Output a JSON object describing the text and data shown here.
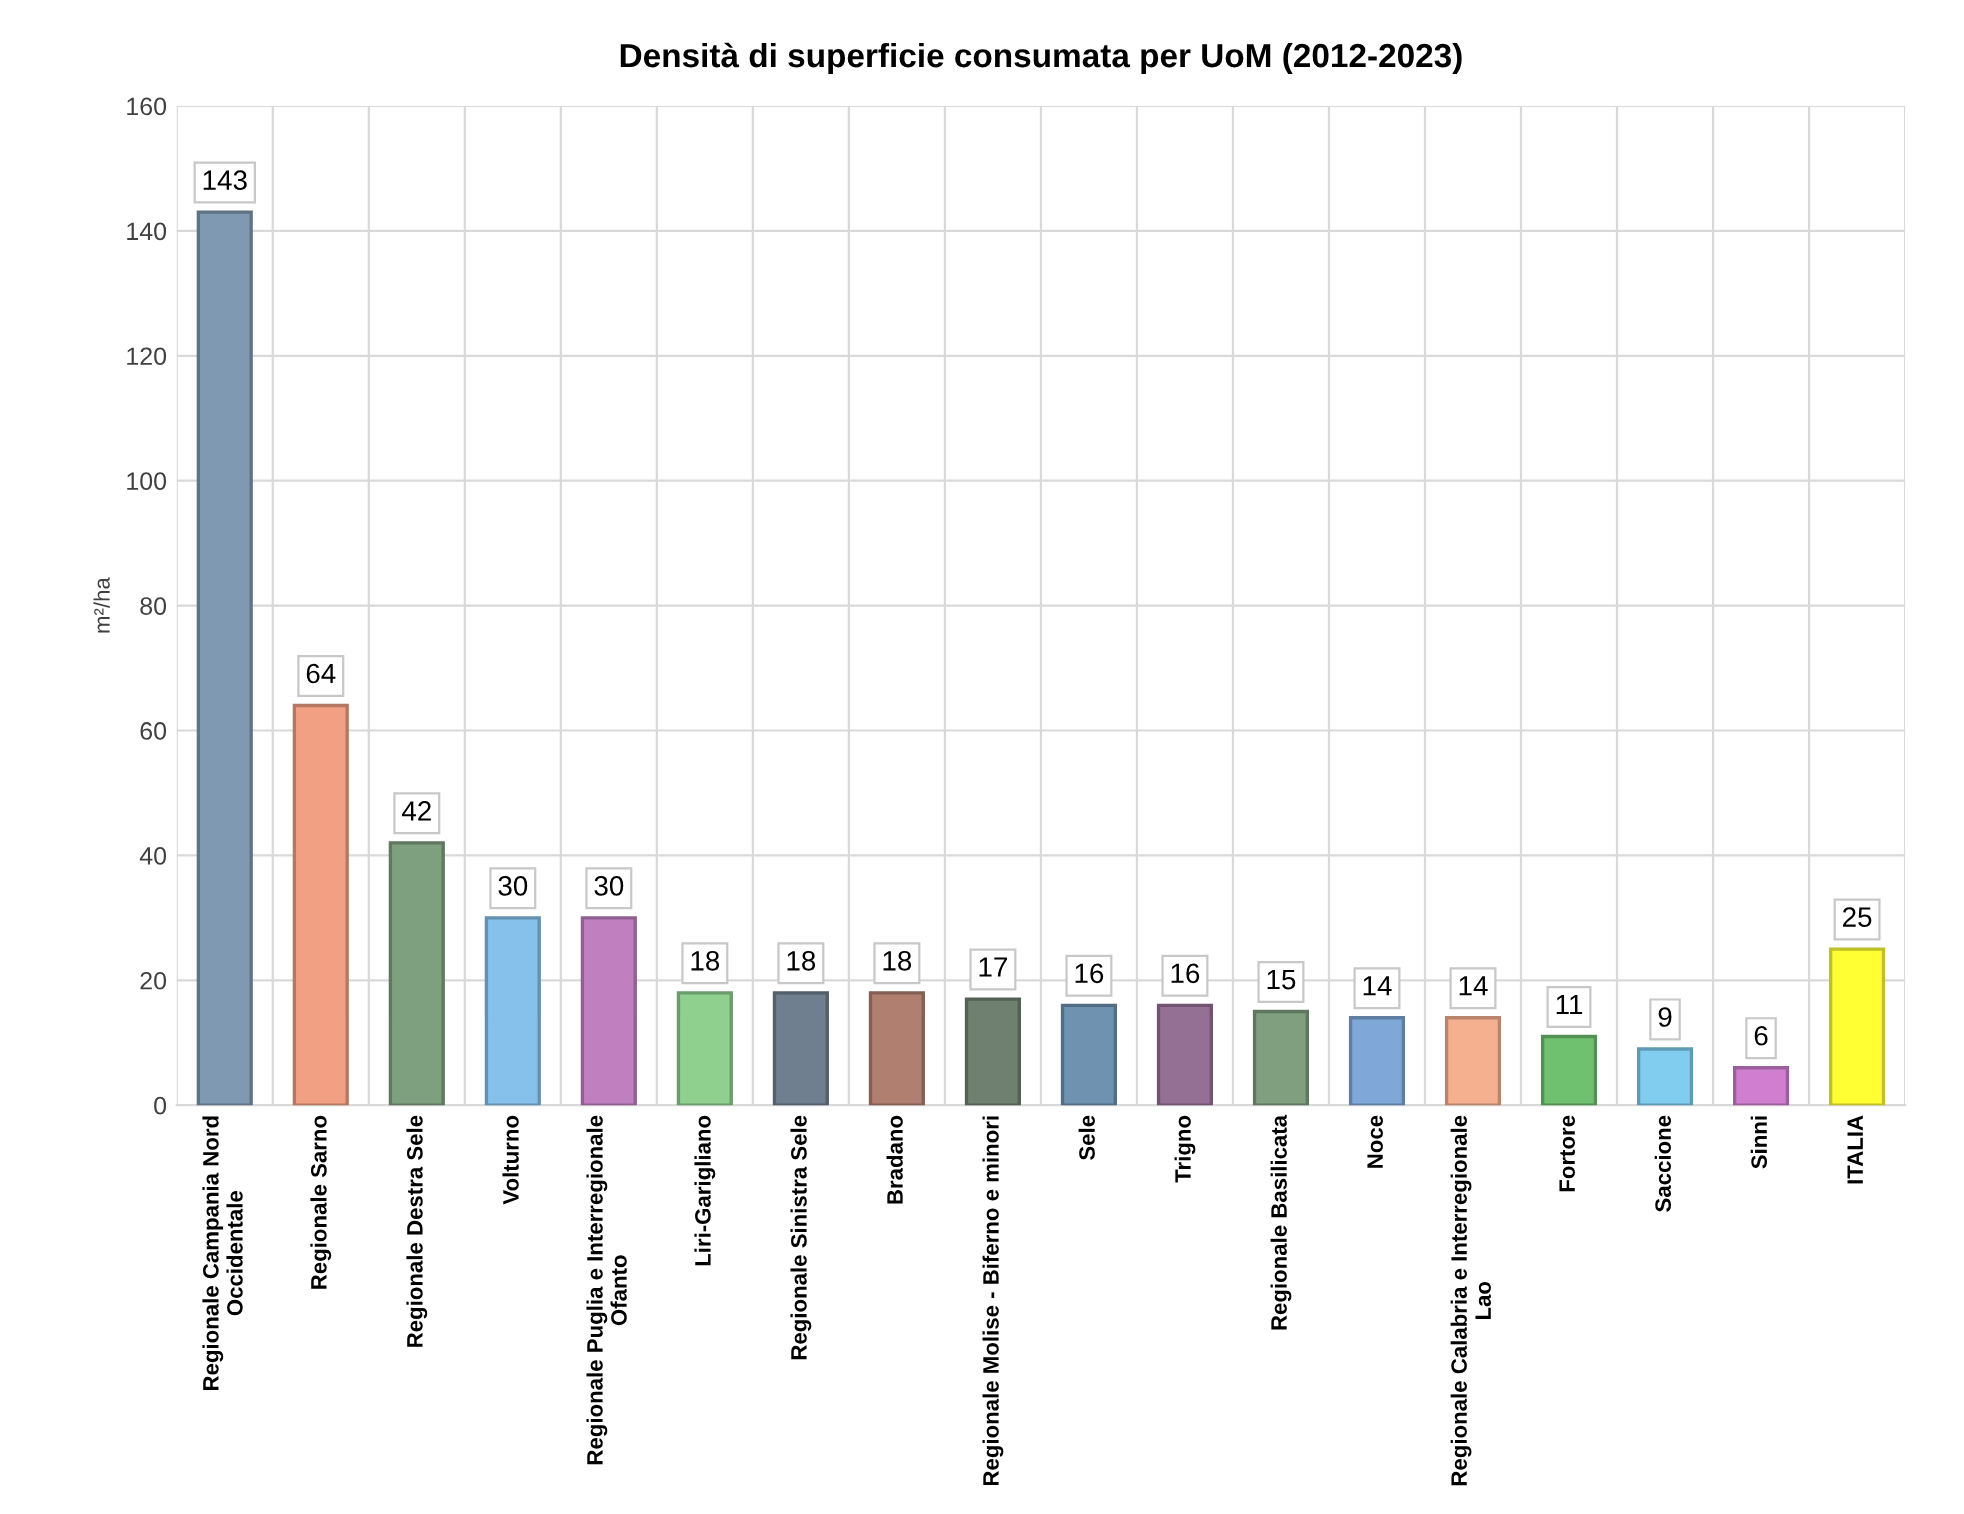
{
  "chart_data": {
    "type": "bar",
    "title": "Densità di superficie consumata per UoM (2012-2023)",
    "ylabel": "m²/ha",
    "categories": [
      "Regionale Campania Nord\nOccidentale",
      "Regionale Sarno",
      "Regionale Destra Sele",
      "Volturno",
      "Regionale Puglia e Interregionale\nOfanto",
      "Liri-Garigliano",
      "Regionale Sinistra Sele",
      "Bradano",
      "Regionale Molise - Biferno e minori",
      "Sele",
      "Trigno",
      "Regionale Basilicata",
      "Noce",
      "Regionale Calabria e Interregionale\nLao",
      "Fortore",
      "Saccione",
      "Sinni",
      "ITALIA"
    ],
    "values": [
      143,
      64,
      42,
      30,
      30,
      18,
      18,
      18,
      17,
      16,
      16,
      15,
      14,
      14,
      11,
      9,
      6,
      25
    ],
    "colors": [
      "#7f99b2",
      "#f2a084",
      "#7fa07f",
      "#85c1ea",
      "#c080c0",
      "#8fd08f",
      "#6f7f8f",
      "#b07f70",
      "#6f8070",
      "#6f92b0",
      "#957095",
      "#7f9f7f",
      "#7fa8d8",
      "#f5b090",
      "#6fc06f",
      "#80cdf0",
      "#d07fd0",
      "#ffff33"
    ],
    "ylim": [
      0,
      160
    ],
    "yticks": [
      0,
      20,
      40,
      60,
      80,
      100,
      120,
      140,
      160
    ],
    "grid": true,
    "data_labels": true
  }
}
